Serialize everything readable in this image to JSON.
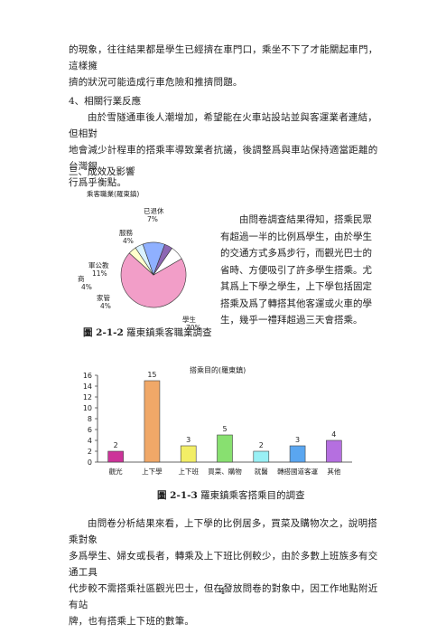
{
  "paragraphs": {
    "p1_line1": "的現象，往往結果都是學生已經擠在車門口，乘坐不下了才能關起車門，這樣擁",
    "p1_line2": "擠的狀況可能造成行車危險和推擠問題。",
    "heading4": "4、相關行業反應",
    "p2_line1": "由於雪隧通車後人潮增加，希望能在火車站設站並與客運業者連結，但相對",
    "p2_line2": "地會減少計程車的搭乘率導致業者抗議，後調整爲與車站保持適當距離的台灣銀",
    "p2_line3": "行爲乎衡點。",
    "heading3": "三、成效及影響",
    "side": "由問卷調查結果得知，搭乘民眾有超過一半的比例爲學生，由於學生的交通方式多爲步行，而觀光巴士的省時、方便吸引了許多學生搭乘。尤其爲上下學之學生，上下學包括固定搭乘及爲了轉搭其他客運或火車的學生，幾乎一禮拜超過三天會搭乘。",
    "p3_line1": "由問卷分析結果來看，上下學的比例居多，買菜及購物次之，說明搭乘對象",
    "p3_line2": "多爲學生、婦女或長者，轉乘及上下班比例較少，由於多數上班族多有交通工具",
    "p3_line3": "代步較不需搭乘社區觀光巴士，但在發放問卷的對象中，因工作地點附近有站",
    "p3_line4": "牌，也有搭乘上下班的數筆。"
  },
  "captions": {
    "fig1_number": "圖 2-1-2",
    "fig1_text": " 羅東鎮乘客職業調查",
    "fig2_number": "圖 2-1-3",
    "fig2_text": " 羅東鎮乘客搭乘目的調查"
  },
  "page_number": "4",
  "chart_data": [
    {
      "type": "pie",
      "title": "乘客職業(羅東鎮)",
      "slices": [
        {
          "label": "學生",
          "value": 70,
          "pct": "70%",
          "color": "#f29ec8"
        },
        {
          "label": "家管",
          "value": 4,
          "pct": "4%",
          "color": "#ffffcc"
        },
        {
          "label": "商",
          "value": 4,
          "pct": "4%",
          "color": "#d9f2ff"
        },
        {
          "label": "軍公教",
          "value": 11,
          "pct": "11%",
          "color": "#8fb0ff"
        },
        {
          "label": "服務",
          "value": 4,
          "pct": "4%",
          "color": "#8c66b3"
        },
        {
          "label": "已退休",
          "value": 7,
          "pct": "7%",
          "color": "#ffffff"
        }
      ]
    },
    {
      "type": "bar",
      "title": "搭乘目的(羅東鎮)",
      "categories": [
        "觀光",
        "上下學",
        "上下班",
        "買菜、購物",
        "就醫",
        "轉搭國道客運",
        "其他"
      ],
      "values": [
        2,
        15,
        3,
        5,
        2,
        3,
        4
      ],
      "colors": [
        "#cc3399",
        "#f0a868",
        "#f2ee66",
        "#88e070",
        "#99f0f5",
        "#5aa6f0",
        "#b56fe0"
      ],
      "ylim": [
        0,
        16
      ],
      "yticks": [
        0,
        2,
        4,
        6,
        8,
        10,
        12,
        14,
        16
      ]
    }
  ]
}
